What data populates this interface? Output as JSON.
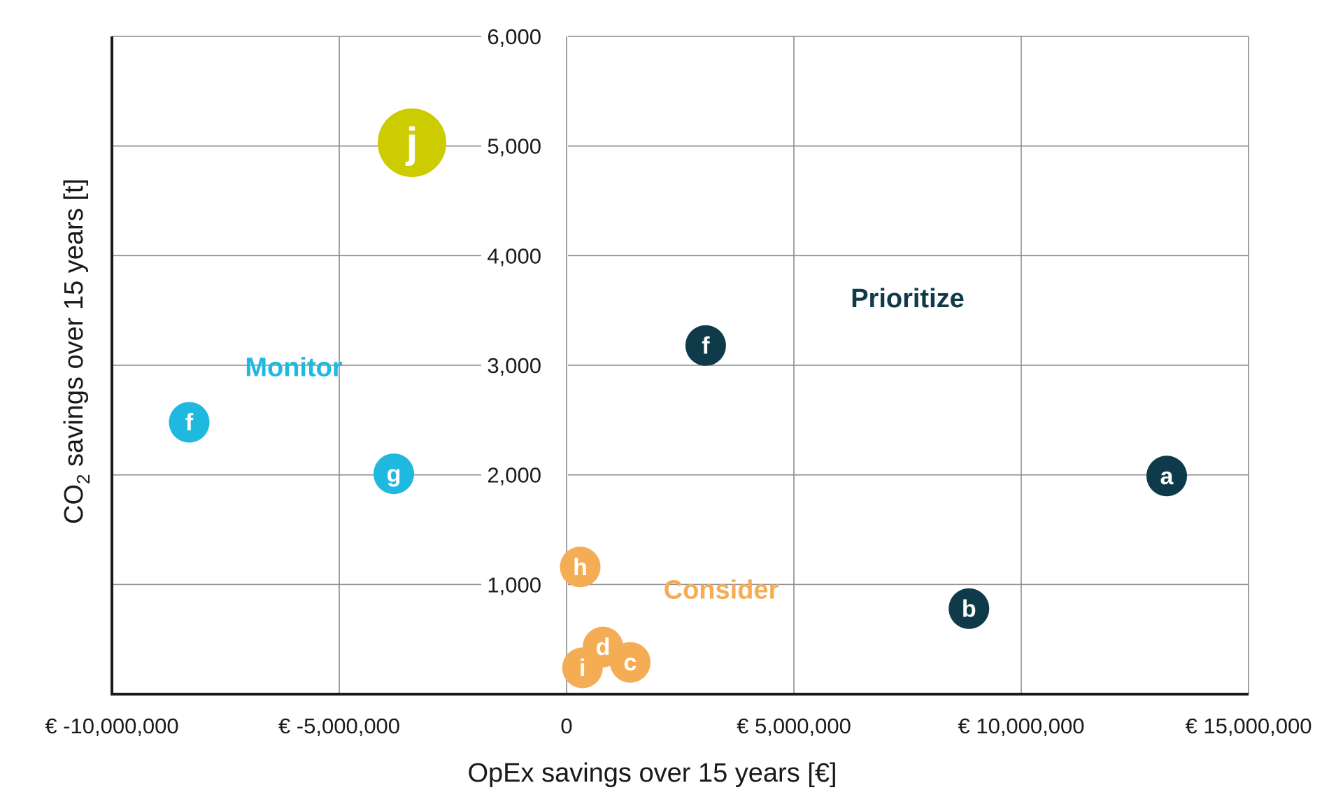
{
  "chart_data": {
    "type": "scatter",
    "xlabel": "OpEx savings over 15 years [€]",
    "ylabel": "CO2 savings over 15 years [t]",
    "ylabel_main": "CO",
    "ylabel_sub": "2",
    "ylabel_rest": " savings over 15 years [t]",
    "xlim": [
      -10000000,
      15000000
    ],
    "ylim": [
      0,
      6000
    ],
    "grid": true,
    "x_ticks": [
      {
        "value": -10000000,
        "label": "€ -10,000,000"
      },
      {
        "value": -5000000,
        "label": "€ -5,000,000"
      },
      {
        "value": 0,
        "label": "0"
      },
      {
        "value": 5000000,
        "label": "€ 5,000,000"
      },
      {
        "value": 10000000,
        "label": "€ 10,000,000"
      },
      {
        "value": 15000000,
        "label": "€ 15,000,000"
      }
    ],
    "y_ticks": [
      {
        "value": 1000,
        "label": "1,000"
      },
      {
        "value": 2000,
        "label": "2,000"
      },
      {
        "value": 3000,
        "label": "3,000"
      },
      {
        "value": 4000,
        "label": "4,000"
      },
      {
        "value": 5000,
        "label": "5,000"
      },
      {
        "value": 6000,
        "label": "6,000"
      }
    ],
    "colors": {
      "prioritize": "#0e3a4a",
      "monitor": "#1fb9e0",
      "consider": "#f5ad55",
      "highlight": "#cccc00",
      "grid": "#8a8a8a",
      "axis": "#1a1a1a"
    },
    "regions": [
      {
        "label": "Prioritize",
        "x": 7500000,
        "y": 3530,
        "color": "#0e3a4a"
      },
      {
        "label": "Monitor",
        "x": -6000000,
        "y": 2900,
        "color": "#1fb9e0"
      },
      {
        "label": "Consider",
        "x": 3400000,
        "y": 870,
        "color": "#f5ad55"
      }
    ],
    "points": [
      {
        "label": "j",
        "x": -3400000,
        "y": 5030,
        "color": "#cccc00",
        "size": "large"
      },
      {
        "label": "f",
        "x": 3060000,
        "y": 3180,
        "color": "#0e3a4a",
        "size": "normal"
      },
      {
        "label": "f",
        "x": -8300000,
        "y": 2480,
        "color": "#1fb9e0",
        "size": "normal"
      },
      {
        "label": "g",
        "x": -3800000,
        "y": 2010,
        "color": "#1fb9e0",
        "size": "normal"
      },
      {
        "label": "a",
        "x": 13200000,
        "y": 1990,
        "color": "#0e3a4a",
        "size": "normal"
      },
      {
        "label": "h",
        "x": 300000,
        "y": 1160,
        "color": "#f5ad55",
        "size": "normal"
      },
      {
        "label": "b",
        "x": 8850000,
        "y": 780,
        "color": "#0e3a4a",
        "size": "normal"
      },
      {
        "label": "d",
        "x": 800000,
        "y": 430,
        "color": "#f5ad55",
        "size": "normal"
      },
      {
        "label": "c",
        "x": 1400000,
        "y": 290,
        "color": "#f5ad55",
        "size": "normal"
      },
      {
        "label": "i",
        "x": 350000,
        "y": 240,
        "color": "#f5ad55",
        "size": "normal"
      }
    ]
  }
}
